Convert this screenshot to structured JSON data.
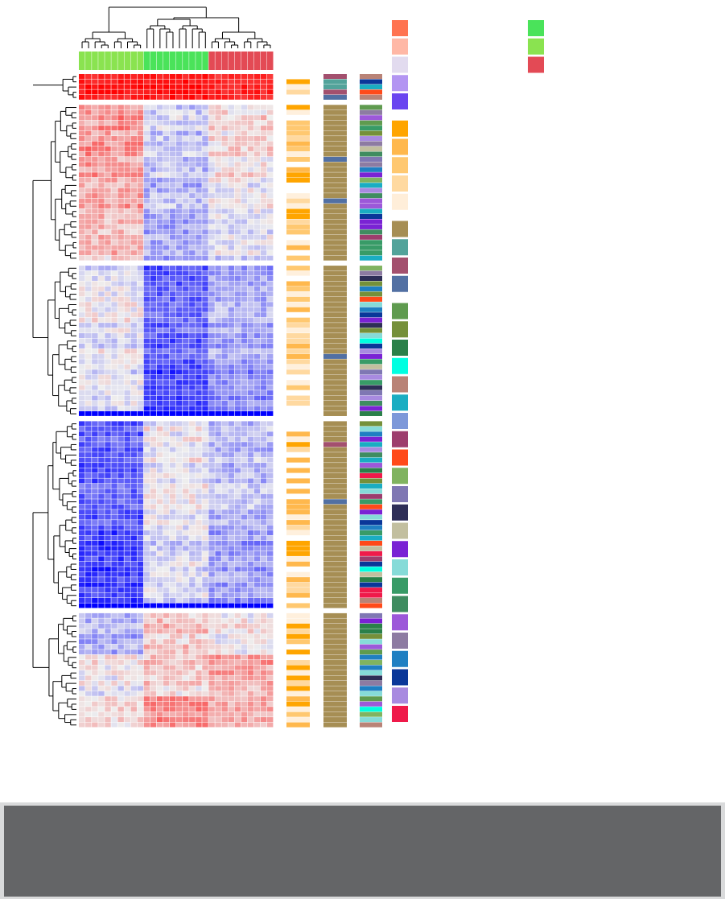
{
  "chart_data": {
    "type": "heatmap",
    "title": "",
    "xlabel": "",
    "ylabel": "",
    "n_columns": 30,
    "column_groups": [
      {
        "color": "#8ae350",
        "count": 10
      },
      {
        "color": "#4ae35a",
        "count": 10
      },
      {
        "color": "#e34a55",
        "count": 10
      }
    ],
    "row_blocks": [
      {
        "rows": 5,
        "pattern": [
          0.9,
          0.95,
          0.85
        ],
        "noise": 0.12
      },
      {
        "rows": 20,
        "pattern": [
          0.35,
          -0.2,
          0.05
        ],
        "noise": 0.22
      },
      {
        "rows": 10,
        "pattern": [
          0.2,
          -0.35,
          -0.1
        ],
        "noise": 0.2
      },
      {
        "rows": 18,
        "pattern": [
          -0.05,
          -0.6,
          -0.3
        ],
        "noise": 0.2
      },
      {
        "rows": 10,
        "pattern": [
          -0.1,
          -0.75,
          -0.45
        ],
        "noise": 0.18
      },
      {
        "rows": 1,
        "pattern": [
          -1.0,
          -1.0,
          -1.0
        ],
        "noise": 0.0
      },
      {
        "rows": 20,
        "pattern": [
          -0.6,
          0.0,
          -0.2
        ],
        "noise": 0.2
      },
      {
        "rows": 15,
        "pattern": [
          -0.75,
          -0.1,
          -0.35
        ],
        "noise": 0.2
      },
      {
        "rows": 1,
        "pattern": [
          -1.0,
          -1.0,
          -1.0
        ],
        "noise": 0.0
      },
      {
        "rows": 8,
        "pattern": [
          -0.25,
          0.2,
          0.05
        ],
        "noise": 0.2
      },
      {
        "rows": 8,
        "pattern": [
          0.0,
          0.15,
          0.3
        ],
        "noise": 0.2
      },
      {
        "rows": 6,
        "pattern": [
          0.1,
          0.45,
          0.3
        ],
        "noise": 0.18
      }
    ],
    "row_gaps_after_block": [
      0,
      2,
      5,
      8
    ],
    "color_scale": {
      "low": "#0000ff",
      "mid": "#eeeeee",
      "high": "#ff0000"
    },
    "annotation_tracks": {
      "orange_shades": [
        "#ffa500",
        "#ffb84d",
        "#ffc870",
        "#ffd9a0",
        "#fff0dd",
        "#ffffff"
      ],
      "olive_primary": "#a68e54",
      "olive_others": [
        "#52a39a",
        "#a3506e",
        "#5270a3"
      ],
      "categorical_palette": [
        "#5f9b4f",
        "#75903a",
        "#2a8049",
        "#00ffe1",
        "#b98377",
        "#1aadc2",
        "#7d98d9",
        "#9d3d6d",
        "#ff4a1a",
        "#80b360",
        "#7f77b3",
        "#2e2e57",
        "#c2bf9f",
        "#7a22d4",
        "#86dbd8",
        "#389b67",
        "#3f8c60",
        "#9c58d9",
        "#8d7ba2",
        "#1f7fc2",
        "#0a3799",
        "#a88ae0",
        "#ef1a4a"
      ]
    },
    "legend_left": [
      "#ff7350",
      "#ffb8a6",
      "#e2dbef",
      "#b395f2",
      "#6a45f0",
      "#ffa500",
      "#ffb84d",
      "#ffc870",
      "#ffd9a0",
      "#ffeed9",
      "#a68e54",
      "#52a39a",
      "#a3506e",
      "#5270a3",
      "#5f9b4f",
      "#75903a",
      "#2a8049",
      "#00ffe1",
      "#b98377",
      "#1aadc2",
      "#7d98d9",
      "#9d3d6d",
      "#ff4a1a",
      "#80b360",
      "#7f77b3",
      "#2e2e57",
      "#c2bf9f",
      "#7a22d4",
      "#86dbd8",
      "#389b67",
      "#3f8c60",
      "#9c58d9",
      "#8d7ba2",
      "#1f7fc2",
      "#0a3799",
      "#a88ae0",
      "#ef1a4a"
    ],
    "legend_right": [
      "#4ae35a",
      "#8ae350",
      "#e34a55"
    ],
    "grid": false,
    "legend_position": "right"
  }
}
